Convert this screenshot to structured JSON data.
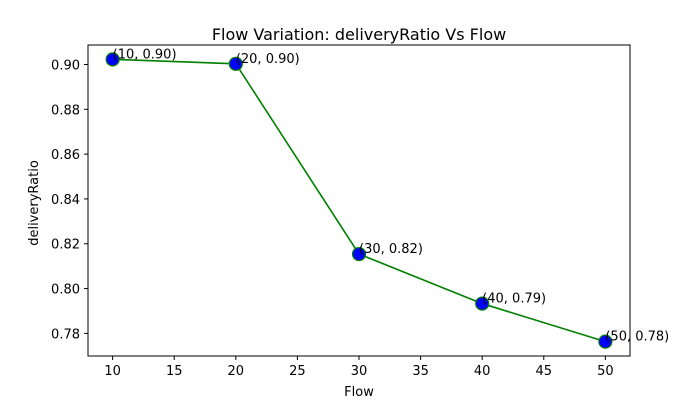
{
  "chart_data": {
    "type": "line",
    "title": "Flow Variation: deliveryRatio Vs Flow",
    "xlabel": "Flow",
    "ylabel": "deliveryRatio",
    "x": [
      10,
      20,
      30,
      40,
      50
    ],
    "series": [
      {
        "values": [
          0.9023,
          0.9003,
          0.8154,
          0.7933,
          0.7763
        ]
      }
    ],
    "point_labels": [
      "(10, 0.90)",
      "(20, 0.90)",
      "(30, 0.82)",
      "(40, 0.79)",
      "(50, 0.78)"
    ],
    "xlim": [
      8,
      52
    ],
    "ylim": [
      0.7699,
      0.9087
    ],
    "xticks": [
      10,
      15,
      20,
      25,
      30,
      35,
      40,
      45,
      50
    ],
    "xtick_labels": [
      "10",
      "15",
      "20",
      "25",
      "30",
      "35",
      "40",
      "45",
      "50"
    ],
    "yticks": [
      0.78,
      0.8,
      0.82,
      0.84,
      0.86,
      0.88,
      0.9
    ],
    "ytick_labels": [
      "0.78",
      "0.80",
      "0.82",
      "0.84",
      "0.86",
      "0.88",
      "0.90"
    ],
    "grid": false,
    "line_color": "#008000",
    "marker_face_color": "#0000ff",
    "marker_edge_color": "#008000"
  }
}
